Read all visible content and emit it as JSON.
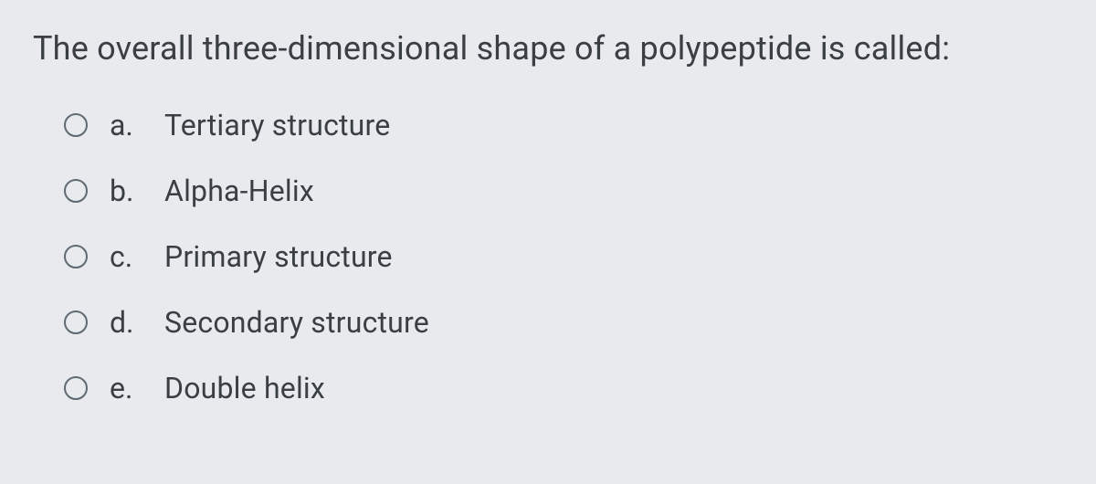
{
  "question": {
    "prompt": "The overall three-dimensional shape of a polypeptide is called:",
    "options": [
      {
        "letter": "a.",
        "text": "Tertiary structure"
      },
      {
        "letter": "b.",
        "text": "Alpha-Helix"
      },
      {
        "letter": "c.",
        "text": "Primary structure"
      },
      {
        "letter": "d.",
        "text": "Secondary structure"
      },
      {
        "letter": "e.",
        "text": "Double helix"
      }
    ]
  },
  "styling": {
    "background_color": "#e8eaed",
    "text_color": "#3a3f44",
    "radio_border_color": "#5f6a73",
    "question_fontsize": 36,
    "option_fontsize": 32,
    "radio_diameter": 26,
    "option_gap": 34
  }
}
